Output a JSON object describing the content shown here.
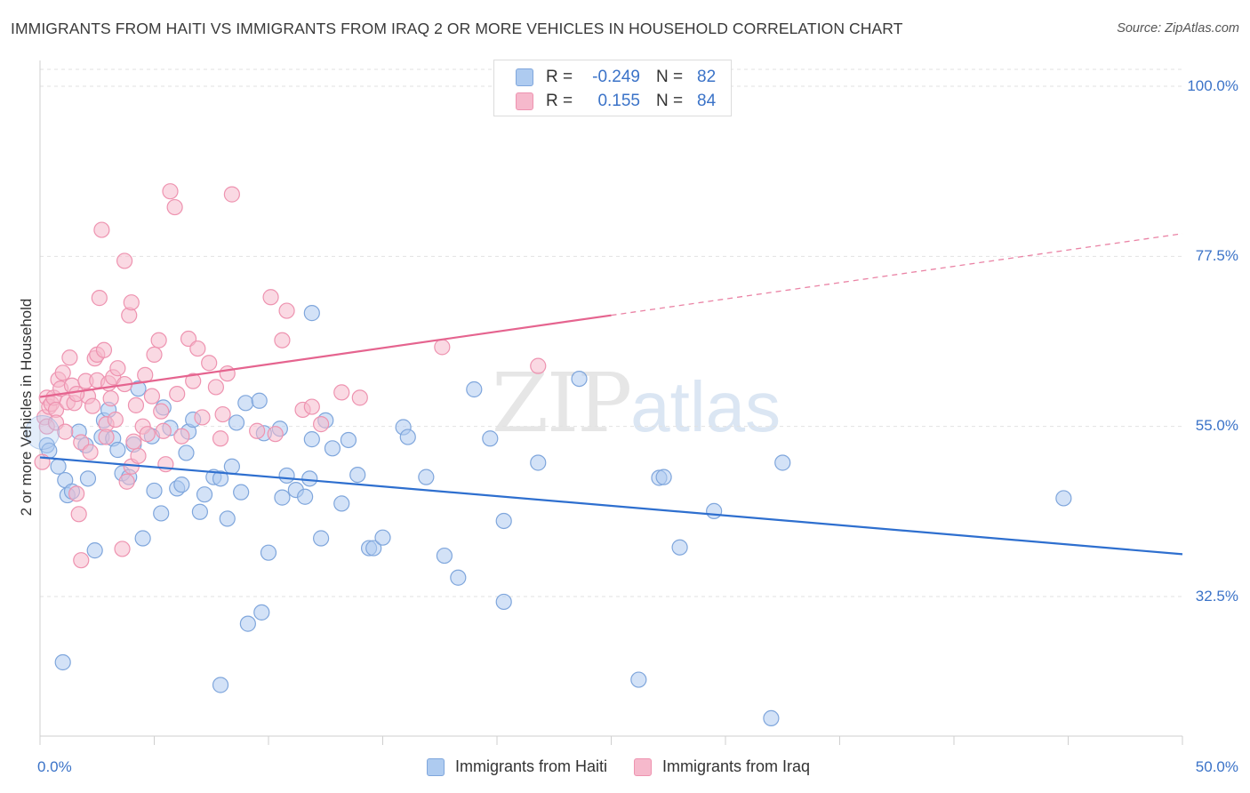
{
  "header": {
    "title": "IMMIGRANTS FROM HAITI VS IMMIGRANTS FROM IRAQ 2 OR MORE VEHICLES IN HOUSEHOLD CORRELATION CHART",
    "source": "Source: ZipAtlas.com"
  },
  "watermark": {
    "zip": "ZIP",
    "atlas": "atlas"
  },
  "stats_legend": {
    "haiti": {
      "r_label": "R =",
      "r_value": "-0.249",
      "n_label": "N =",
      "n_value": "82"
    },
    "iraq": {
      "r_label": "R =",
      "r_value": "0.155",
      "n_label": "N =",
      "n_value": "84"
    }
  },
  "colors": {
    "haiti_fill": "#aecbf0",
    "haiti_stroke": "#7fa6dc",
    "haiti_line": "#2e6fcf",
    "iraq_fill": "#f6b9cc",
    "iraq_stroke": "#ee93b0",
    "iraq_line": "#e5648f",
    "tick_text": "#3b73c8"
  },
  "chart_data": {
    "type": "scatter",
    "title": "IMMIGRANTS FROM HAITI VS IMMIGRANTS FROM IRAQ 2 OR MORE VEHICLES IN HOUSEHOLD CORRELATION CHART",
    "xlabel": "",
    "ylabel": "2 or more Vehicles in Household",
    "xlim": [
      0,
      50
    ],
    "ylim": [
      15,
      102
    ],
    "x_tick_labels": [
      "0.0%",
      "50.0%"
    ],
    "y_ticks": [
      32.5,
      55.0,
      77.5,
      100.0
    ],
    "y_tick_labels": [
      "32.5%",
      "55.0%",
      "77.5%",
      "100.0%"
    ],
    "grid": true,
    "legend": "bottom-center",
    "series": [
      {
        "name": "Immigrants from Haiti",
        "trend": {
          "x": [
            0,
            50
          ],
          "y": [
            50.9,
            38.1
          ],
          "dashed_from": null
        },
        "points": [
          [
            0.3,
            52.5
          ],
          [
            0.4,
            51.8
          ],
          [
            0.8,
            49.7
          ],
          [
            1.0,
            23.8
          ],
          [
            1.1,
            47.9
          ],
          [
            1.2,
            45.9
          ],
          [
            1.4,
            46.4
          ],
          [
            1.7,
            54.3
          ],
          [
            2.0,
            52.5
          ],
          [
            2.1,
            48.1
          ],
          [
            2.4,
            38.6
          ],
          [
            2.7,
            53.6
          ],
          [
            2.8,
            55.8
          ],
          [
            3.0,
            57.2
          ],
          [
            3.2,
            53.4
          ],
          [
            3.4,
            51.9
          ],
          [
            3.6,
            48.8
          ],
          [
            3.9,
            48.3
          ],
          [
            4.1,
            52.6
          ],
          [
            4.3,
            60.0
          ],
          [
            4.5,
            40.2
          ],
          [
            4.9,
            53.7
          ],
          [
            5.0,
            46.5
          ],
          [
            5.3,
            43.5
          ],
          [
            5.4,
            57.5
          ],
          [
            5.7,
            54.8
          ],
          [
            6.0,
            46.8
          ],
          [
            6.2,
            47.3
          ],
          [
            6.4,
            51.5
          ],
          [
            6.5,
            54.3
          ],
          [
            6.7,
            55.9
          ],
          [
            7.0,
            43.7
          ],
          [
            7.2,
            46.0
          ],
          [
            7.6,
            48.3
          ],
          [
            7.9,
            48.1
          ],
          [
            7.9,
            20.8
          ],
          [
            8.2,
            42.8
          ],
          [
            8.4,
            49.7
          ],
          [
            8.6,
            55.5
          ],
          [
            8.8,
            46.3
          ],
          [
            9.0,
            58.1
          ],
          [
            9.1,
            28.9
          ],
          [
            9.6,
            58.4
          ],
          [
            9.7,
            30.4
          ],
          [
            9.8,
            54.1
          ],
          [
            10.0,
            38.3
          ],
          [
            10.5,
            54.7
          ],
          [
            10.6,
            45.6
          ],
          [
            10.8,
            48.5
          ],
          [
            11.2,
            46.6
          ],
          [
            11.6,
            45.7
          ],
          [
            11.8,
            48.1
          ],
          [
            11.9,
            70.0
          ],
          [
            11.9,
            53.3
          ],
          [
            12.3,
            40.2
          ],
          [
            12.5,
            55.8
          ],
          [
            12.8,
            52.1
          ],
          [
            13.2,
            44.8
          ],
          [
            13.5,
            53.2
          ],
          [
            13.9,
            48.6
          ],
          [
            14.4,
            38.9
          ],
          [
            14.6,
            38.9
          ],
          [
            15.0,
            40.3
          ],
          [
            15.9,
            54.9
          ],
          [
            16.1,
            53.6
          ],
          [
            16.9,
            48.3
          ],
          [
            17.7,
            37.9
          ],
          [
            18.3,
            35.0
          ],
          [
            19.0,
            59.9
          ],
          [
            19.7,
            53.4
          ],
          [
            20.3,
            42.5
          ],
          [
            20.3,
            31.8
          ],
          [
            21.8,
            50.2
          ],
          [
            23.6,
            61.3
          ],
          [
            26.2,
            21.5
          ],
          [
            27.1,
            48.2
          ],
          [
            27.3,
            48.3
          ],
          [
            28.0,
            39.0
          ],
          [
            29.5,
            43.8
          ],
          [
            32.0,
            16.4
          ],
          [
            32.5,
            50.2
          ],
          [
            44.8,
            45.5
          ]
        ]
      },
      {
        "name": "Immigrants from Iraq",
        "trend": {
          "x": [
            0,
            50
          ],
          "y": [
            58.9,
            80.5
          ],
          "dashed_from": 25
        },
        "points": [
          [
            0.1,
            50.3
          ],
          [
            0.2,
            56.2
          ],
          [
            0.3,
            55.0
          ],
          [
            0.3,
            58.8
          ],
          [
            0.4,
            57.6
          ],
          [
            0.5,
            58.0
          ],
          [
            0.6,
            58.8
          ],
          [
            0.7,
            57.2
          ],
          [
            0.8,
            61.2
          ],
          [
            0.9,
            60.0
          ],
          [
            1.0,
            62.1
          ],
          [
            1.2,
            58.2
          ],
          [
            1.3,
            64.1
          ],
          [
            1.4,
            60.4
          ],
          [
            1.5,
            58.1
          ],
          [
            1.6,
            46.1
          ],
          [
            1.7,
            43.4
          ],
          [
            1.8,
            52.9
          ],
          [
            1.8,
            37.3
          ],
          [
            2.0,
            61.0
          ],
          [
            2.1,
            59.0
          ],
          [
            2.2,
            51.6
          ],
          [
            2.4,
            64.0
          ],
          [
            2.5,
            64.5
          ],
          [
            2.5,
            61.1
          ],
          [
            2.6,
            72.0
          ],
          [
            2.7,
            81.0
          ],
          [
            2.8,
            65.1
          ],
          [
            2.9,
            55.3
          ],
          [
            3.0,
            60.7
          ],
          [
            3.1,
            58.7
          ],
          [
            3.2,
            61.5
          ],
          [
            3.4,
            62.7
          ],
          [
            3.6,
            38.8
          ],
          [
            3.7,
            76.9
          ],
          [
            3.8,
            47.7
          ],
          [
            3.9,
            69.7
          ],
          [
            4.0,
            71.4
          ],
          [
            4.0,
            49.7
          ],
          [
            4.2,
            57.8
          ],
          [
            4.3,
            51.1
          ],
          [
            4.5,
            55.0
          ],
          [
            4.7,
            54.0
          ],
          [
            4.9,
            59.0
          ],
          [
            5.0,
            64.5
          ],
          [
            5.2,
            66.4
          ],
          [
            5.4,
            54.4
          ],
          [
            5.5,
            50.0
          ],
          [
            5.7,
            86.1
          ],
          [
            5.9,
            84.0
          ],
          [
            6.2,
            53.7
          ],
          [
            6.5,
            66.6
          ],
          [
            6.7,
            61.0
          ],
          [
            6.9,
            65.3
          ],
          [
            7.1,
            56.2
          ],
          [
            7.4,
            63.4
          ],
          [
            7.9,
            53.4
          ],
          [
            8.0,
            56.6
          ],
          [
            8.2,
            62.0
          ],
          [
            8.4,
            85.7
          ],
          [
            9.5,
            54.4
          ],
          [
            10.1,
            72.1
          ],
          [
            10.3,
            54.0
          ],
          [
            10.6,
            66.4
          ],
          [
            10.8,
            70.3
          ],
          [
            11.5,
            57.2
          ],
          [
            11.9,
            57.6
          ],
          [
            12.3,
            55.3
          ],
          [
            13.2,
            59.5
          ],
          [
            14.0,
            58.8
          ],
          [
            17.6,
            65.5
          ],
          [
            21.8,
            63.0
          ],
          [
            0.7,
            55.5
          ],
          [
            1.1,
            54.3
          ],
          [
            1.6,
            59.3
          ],
          [
            2.3,
            57.7
          ],
          [
            2.9,
            53.6
          ],
          [
            3.3,
            55.9
          ],
          [
            3.7,
            60.6
          ],
          [
            4.1,
            53.0
          ],
          [
            4.6,
            61.8
          ],
          [
            5.3,
            57.0
          ],
          [
            6.0,
            59.3
          ],
          [
            7.7,
            60.2
          ]
        ]
      }
    ]
  },
  "axis": {
    "ylabel": "2 or more Vehicles in Household",
    "x_left": "0.0%",
    "x_right": "50.0%",
    "y_ticks": [
      "100.0%",
      "77.5%",
      "55.0%",
      "32.5%"
    ]
  },
  "bottom_legend": {
    "haiti": "Immigrants from Haiti",
    "iraq": "Immigrants from Iraq"
  }
}
